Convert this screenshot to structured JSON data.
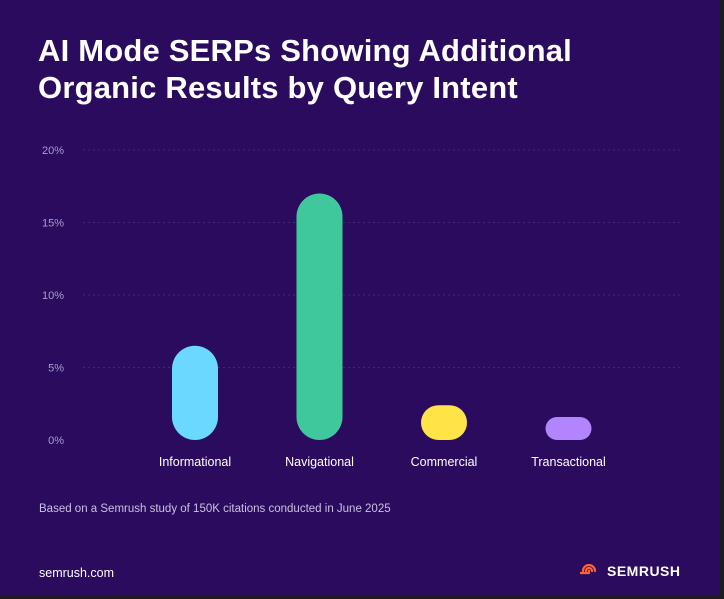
{
  "header": {
    "title_line1": "AI Mode SERPs Showing Additional",
    "title_line2": "Organic Results by Query Intent"
  },
  "chart_data": {
    "type": "bar",
    "title": "AI Mode SERPs Showing Additional Organic Results by Query Intent",
    "xlabel": "",
    "ylabel": "",
    "ylim": [
      0,
      20
    ],
    "yticks": [
      0,
      5,
      10,
      15,
      20
    ],
    "ytick_labels": [
      "0%",
      "5%",
      "10%",
      "15%",
      "20%"
    ],
    "grid": true,
    "categories": [
      "Informational",
      "Navigational",
      "Commercial",
      "Transactional"
    ],
    "values": [
      6.5,
      17,
      2.4,
      1.4
    ],
    "colors": [
      "#6ad8ff",
      "#3ec89c",
      "#ffe347",
      "#b285ff"
    ]
  },
  "footer": {
    "note": "Based on a Semrush study of 150K citations conducted in June 2025",
    "site": "semrush.com",
    "brand": "SEMRUSH",
    "brand_icon": "semrush-logo-icon",
    "brand_color": "#ff642d"
  },
  "colors": {
    "background": "#2b0b5e",
    "gridline": "#3f2878",
    "tick_text": "#a79fd0"
  }
}
